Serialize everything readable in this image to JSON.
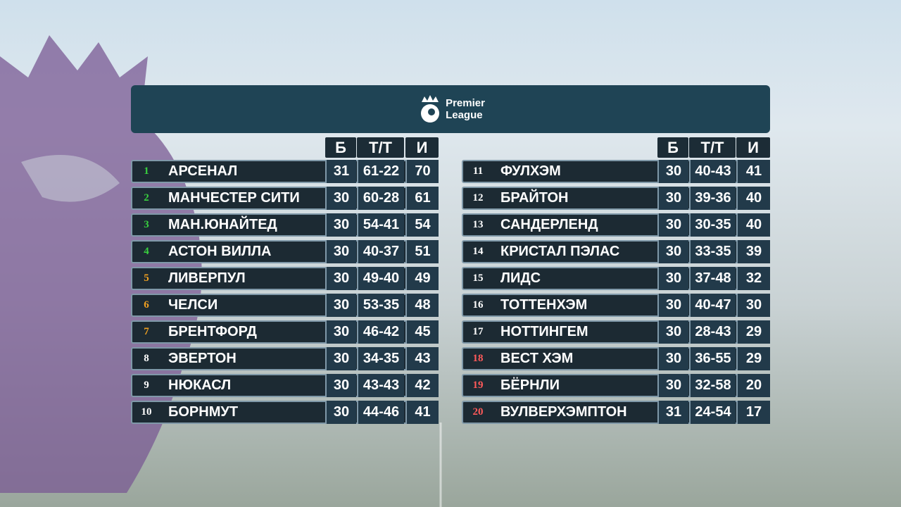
{
  "header": {
    "logo_line1": "Premier",
    "logo_line2": "League"
  },
  "tables": [
    {
      "columns": [
        "Б",
        "Т/Т",
        "И"
      ],
      "rows": [
        {
          "position": 1,
          "color": "#39d13f",
          "team": "АРСЕНАЛ",
          "played": 31,
          "goals": "61-22",
          "points": 70
        },
        {
          "position": 2,
          "color": "#39d13f",
          "team": "МАНЧЕСТЕР СИТИ",
          "played": 30,
          "goals": "60-28",
          "points": 61
        },
        {
          "position": 3,
          "color": "#39d13f",
          "team": "МАН.ЮНАЙТЕД",
          "played": 30,
          "goals": "54-41",
          "points": 54
        },
        {
          "position": 4,
          "color": "#39d13f",
          "team": "АСТОН ВИЛЛА",
          "played": 30,
          "goals": "40-37",
          "points": 51
        },
        {
          "position": 5,
          "color": "#f0a020",
          "team": "ЛИВЕРПУЛ",
          "played": 30,
          "goals": "49-40",
          "points": 49
        },
        {
          "position": 6,
          "color": "#f0a020",
          "team": "ЧЕЛСИ",
          "played": 30,
          "goals": "53-35",
          "points": 48
        },
        {
          "position": 7,
          "color": "#f0a020",
          "team": "БРЕНТФОРД",
          "played": 30,
          "goals": "46-42",
          "points": 45
        },
        {
          "position": 8,
          "color": "#ffffff",
          "team": "ЭВЕРТОН",
          "played": 30,
          "goals": "34-35",
          "points": 43
        },
        {
          "position": 9,
          "color": "#ffffff",
          "team": "НЮКАСЛ",
          "played": 30,
          "goals": "43-43",
          "points": 42
        },
        {
          "position": 10,
          "color": "#ffffff",
          "team": "БОРНМУТ",
          "played": 30,
          "goals": "44-46",
          "points": 41
        }
      ]
    },
    {
      "columns": [
        "Б",
        "Т/Т",
        "И"
      ],
      "rows": [
        {
          "position": 11,
          "color": "#ffffff",
          "team": "ФУЛХЭМ",
          "played": 30,
          "goals": "40-43",
          "points": 41
        },
        {
          "position": 12,
          "color": "#ffffff",
          "team": "БРАЙТОН",
          "played": 30,
          "goals": "39-36",
          "points": 40
        },
        {
          "position": 13,
          "color": "#ffffff",
          "team": "САНДЕРЛЕНД",
          "played": 30,
          "goals": "30-35",
          "points": 40
        },
        {
          "position": 14,
          "color": "#ffffff",
          "team": "КРИСТАЛ ПЭЛАС",
          "played": 30,
          "goals": "33-35",
          "points": 39
        },
        {
          "position": 15,
          "color": "#ffffff",
          "team": "ЛИДС",
          "played": 30,
          "goals": "37-48",
          "points": 32
        },
        {
          "position": 16,
          "color": "#ffffff",
          "team": "ТОТТЕНХЭМ",
          "played": 30,
          "goals": "40-47",
          "points": 30
        },
        {
          "position": 17,
          "color": "#ffffff",
          "team": "НОТТИНГЕМ",
          "played": 30,
          "goals": "28-43",
          "points": 29
        },
        {
          "position": 18,
          "color": "#ff5a5a",
          "team": "ВЕСТ ХЭМ",
          "played": 30,
          "goals": "36-55",
          "points": 29
        },
        {
          "position": 19,
          "color": "#ff5a5a",
          "team": "БЁРНЛИ",
          "played": 30,
          "goals": "32-58",
          "points": 20
        },
        {
          "position": 20,
          "color": "#ff5a5a",
          "team": "ВУЛВЕРХЭМПТОН",
          "played": 31,
          "goals": "24-54",
          "points": 17
        }
      ]
    }
  ]
}
